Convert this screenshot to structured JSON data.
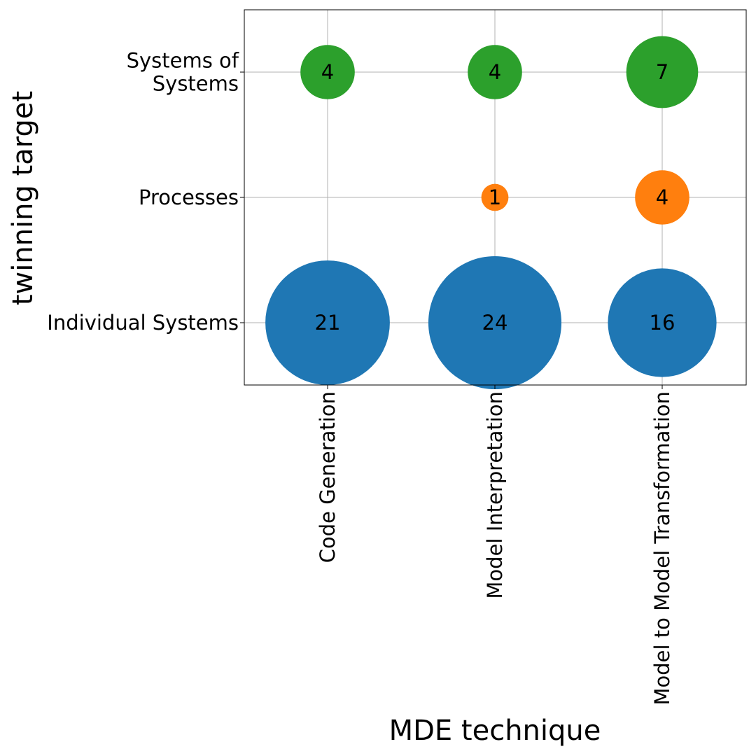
{
  "chart_data": {
    "type": "scatter",
    "subtype": "bubble",
    "title": "",
    "xlabel": "MDE technique",
    "ylabel": "twinning target",
    "x_categories": [
      "Code Generation",
      "Model Interpretation",
      "Model to Model Transformation"
    ],
    "y_categories": [
      [
        "Individual Systems"
      ],
      [
        "Processes"
      ],
      [
        "Systems of",
        "Systems"
      ]
    ],
    "grid": true,
    "legend": "none",
    "series": [
      {
        "color": "#1f77b4",
        "points": [
          {
            "x": "Code Generation",
            "y": "Individual Systems",
            "value": 21
          },
          {
            "x": "Model Interpretation",
            "y": "Individual Systems",
            "value": 24
          },
          {
            "x": "Model to Model Transformation",
            "y": "Individual Systems",
            "value": 16
          }
        ]
      },
      {
        "color": "#ff7f0e",
        "points": [
          {
            "x": "Model Interpretation",
            "y": "Processes",
            "value": 1
          },
          {
            "x": "Model to Model Transformation",
            "y": "Processes",
            "value": 4
          }
        ]
      },
      {
        "color": "#2ca02c",
        "points": [
          {
            "x": "Code Generation",
            "y": "Systems of Systems",
            "value": 4
          },
          {
            "x": "Model Interpretation",
            "y": "Systems of Systems",
            "value": 4
          },
          {
            "x": "Model to Model Transformation",
            "y": "Systems of Systems",
            "value": 7
          }
        ]
      }
    ]
  }
}
